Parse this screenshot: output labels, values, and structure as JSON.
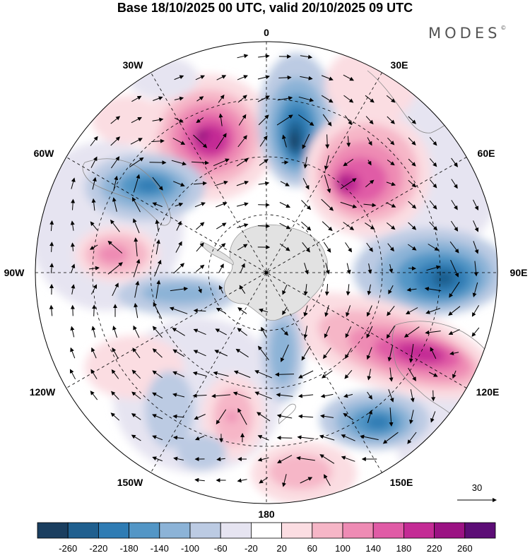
{
  "title": "Base 18/10/2025 00 UTC, valid 20/10/2025 09 UTC",
  "brand": "MODES",
  "brand_mark": "©",
  "longitude_labels": {
    "lon_0": "0",
    "lon_30e": "30E",
    "lon_60e": "60E",
    "lon_90e": "90E",
    "lon_120e": "120E",
    "lon_150e": "150E",
    "lon_180": "180",
    "lon_150w": "150W",
    "lon_120w": "120W",
    "lon_90w": "90W",
    "lon_60w": "60W",
    "lon_30w": "30W"
  },
  "reference_vector": {
    "label": "30"
  },
  "colorbar": {
    "colors": [
      "#1a3e5f",
      "#1f5f8f",
      "#2f7cb4",
      "#5396c6",
      "#8cb3d7",
      "#bccbe3",
      "#e6e4f1",
      "#ffffff",
      "#fbdde2",
      "#f6b6c7",
      "#ee8bb4",
      "#e05ba6",
      "#c42b95",
      "#9b1283",
      "#5c0d76"
    ],
    "labels": [
      "-260",
      "-220",
      "-180",
      "-140",
      "-100",
      "-60",
      "-20",
      "20",
      "60",
      "100",
      "140",
      "180",
      "220",
      "260"
    ]
  }
}
